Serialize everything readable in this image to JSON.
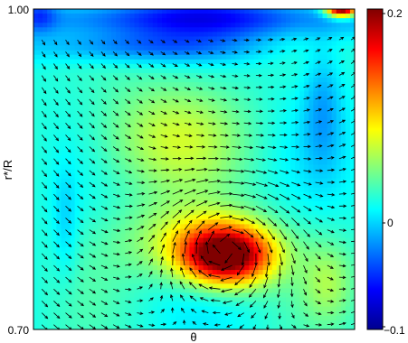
{
  "chart_data": {
    "type": "heatmap",
    "title": "",
    "xlabel": "θ",
    "ylabel": "r*/R",
    "y_tick_labels": [
      "1.00",
      "0.70"
    ],
    "ylim": [
      0.7,
      1.0
    ],
    "x_ticks": [],
    "colorbar": {
      "ticks": [
        0.2,
        0,
        -0.1
      ],
      "tick_labels": [
        "0.2",
        "0",
        "−0.1"
      ],
      "range": [
        -0.1,
        0.2
      ],
      "colormap": "jet"
    },
    "field": {
      "background_value": 0.02,
      "features": [
        {
          "kind": "band",
          "description": "negative band near top",
          "value": -0.05
        },
        {
          "kind": "blob",
          "description": "positive region",
          "peak_value": 0.19
        }
      ]
    },
    "overlay": "velocity vectors (quiver arrows)"
  }
}
